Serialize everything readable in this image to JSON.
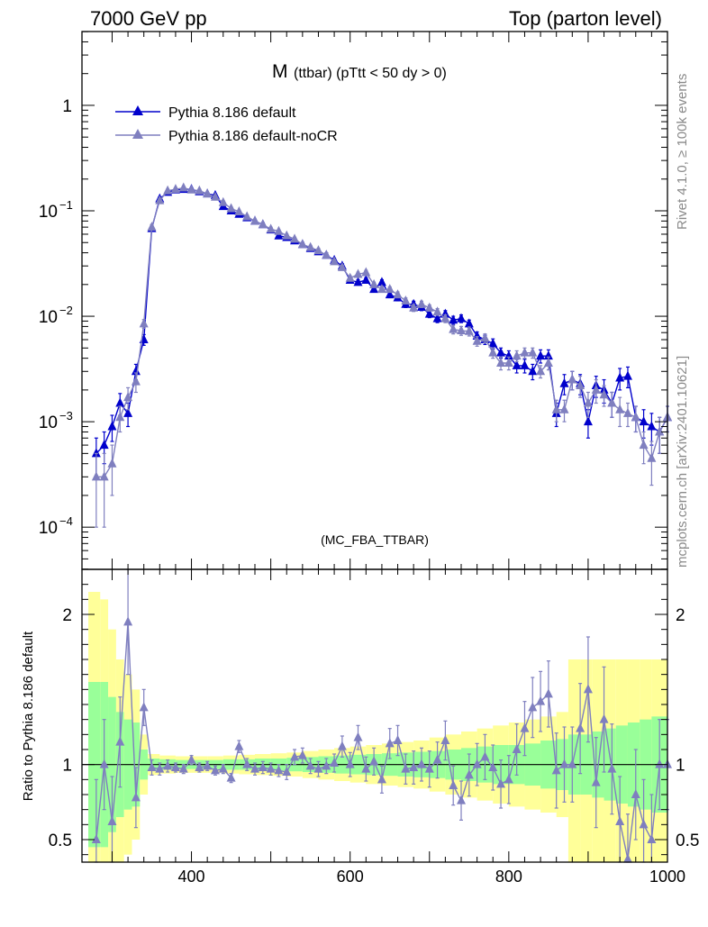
{
  "header": {
    "left": "7000 GeV pp",
    "right": "Top (parton level)"
  },
  "side": {
    "rivet": "Rivet 4.1.0, ≥ 100k events",
    "mcplots": "mcplots.cern.ch [arXiv:2401.10621]"
  },
  "chart_data": {
    "type": "line",
    "title": "M",
    "subtitle": "(ttbar) (pTtt < 50 dy > 0)",
    "analysis_tag": "(MC_FBA_TTBAR)",
    "xlim": [
      262,
      1000
    ],
    "ylim_log10": [
      -4.4,
      0.7
    ],
    "xticks": [
      400,
      600,
      800,
      1000
    ],
    "yticks_main": [
      {
        "exp": 0,
        "label": "1"
      },
      {
        "exp": -1,
        "label": "10"
      },
      {
        "exp": -2,
        "label": "10"
      },
      {
        "exp": -3,
        "label": "10"
      },
      {
        "exp": -4,
        "label": "10"
      }
    ],
    "ytick_exponents": [
      "−1",
      "−2",
      "−3",
      "−4"
    ],
    "ratio_ylabel": "Ratio to Pythia 8.186 default",
    "ratio_ylim": [
      0.35,
      2.3
    ],
    "ratio_yticks": [
      {
        "v": 0.5,
        "label": "0.5"
      },
      {
        "v": 1,
        "label": "1"
      },
      {
        "v": 2,
        "label": "2"
      }
    ],
    "x": [
      280,
      290,
      300,
      310,
      320,
      330,
      340,
      350,
      360,
      370,
      380,
      390,
      400,
      410,
      420,
      430,
      440,
      450,
      460,
      470,
      480,
      490,
      500,
      510,
      520,
      530,
      540,
      550,
      560,
      570,
      580,
      590,
      600,
      610,
      620,
      630,
      640,
      650,
      660,
      670,
      680,
      690,
      700,
      710,
      720,
      730,
      740,
      750,
      760,
      770,
      780,
      790,
      800,
      810,
      820,
      830,
      840,
      850,
      860,
      870,
      880,
      890,
      900,
      910,
      920,
      930,
      940,
      950,
      960,
      970,
      980,
      990,
      1000
    ],
    "series": [
      {
        "name": "Pythia 8.186 default",
        "color": "#0000cc",
        "values": [
          0.0005,
          0.0006,
          0.0009,
          0.0015,
          0.0012,
          0.003,
          0.006,
          0.068,
          0.13,
          0.15,
          0.158,
          0.16,
          0.16,
          0.152,
          0.145,
          0.14,
          0.11,
          0.1,
          0.093,
          0.086,
          0.08,
          0.074,
          0.066,
          0.058,
          0.056,
          0.052,
          0.048,
          0.044,
          0.041,
          0.038,
          0.034,
          0.03,
          0.022,
          0.021,
          0.022,
          0.018,
          0.021,
          0.016,
          0.015,
          0.013,
          0.013,
          0.0122,
          0.0105,
          0.0095,
          0.0105,
          0.0092,
          0.0095,
          0.0085,
          0.0065,
          0.006,
          0.0055,
          0.0045,
          0.0042,
          0.0034,
          0.0034,
          0.003,
          0.0042,
          0.0042,
          0.0012,
          0.0023,
          0.0025,
          0.0023,
          0.001,
          0.0022,
          0.002,
          0.0015,
          0.0026,
          0.0027,
          0.0011,
          0.001,
          0.0009,
          0.0008,
          0.0011
        ],
        "errors": [
          0.0002,
          0.0002,
          0.00025,
          0.00035,
          0.0003,
          0.0005,
          0.0007,
          0.004,
          0.005,
          0.005,
          0.005,
          0.005,
          0.005,
          0.005,
          0.004,
          0.004,
          0.004,
          0.003,
          0.003,
          0.003,
          0.003,
          0.003,
          0.003,
          0.002,
          0.002,
          0.002,
          0.002,
          0.002,
          0.002,
          0.002,
          0.0015,
          0.0015,
          0.0012,
          0.0012,
          0.0012,
          0.001,
          0.0012,
          0.001,
          0.001,
          0.0009,
          0.0009,
          0.0009,
          0.0008,
          0.0008,
          0.0008,
          0.0008,
          0.0008,
          0.0007,
          0.0006,
          0.0006,
          0.0006,
          0.0005,
          0.0005,
          0.0005,
          0.0005,
          0.0005,
          0.0006,
          0.0006,
          0.0003,
          0.0005,
          0.0005,
          0.0005,
          0.0003,
          0.0005,
          0.0005,
          0.0004,
          0.0006,
          0.0006,
          0.0003,
          0.0003,
          0.0003,
          0.0003,
          0.0003
        ]
      },
      {
        "name": "Pythia 8.186 default-noCR",
        "color": "#7f7fbf",
        "values": [
          0.0003,
          0.0003,
          0.0004,
          0.0011,
          0.0017,
          0.0024,
          0.0085,
          0.07,
          0.125,
          0.155,
          0.16,
          0.165,
          0.158,
          0.155,
          0.145,
          0.135,
          0.12,
          0.105,
          0.098,
          0.088,
          0.08,
          0.074,
          0.067,
          0.064,
          0.058,
          0.054,
          0.048,
          0.045,
          0.042,
          0.038,
          0.033,
          0.029,
          0.023,
          0.025,
          0.026,
          0.02,
          0.018,
          0.018,
          0.016,
          0.014,
          0.012,
          0.013,
          0.012,
          0.011,
          0.0095,
          0.0075,
          0.0073,
          0.0072,
          0.0058,
          0.0062,
          0.0045,
          0.0036,
          0.0036,
          0.0042,
          0.0045,
          0.0045,
          0.003,
          0.0036,
          0.0013,
          0.0013,
          0.0025,
          0.0022,
          0.0015,
          0.002,
          0.0018,
          0.0015,
          0.0013,
          0.0012,
          0.0011,
          0.0006,
          0.00045,
          0.0008,
          0.0011
        ],
        "errors": [
          0.0002,
          0.0002,
          0.0002,
          0.0003,
          0.0004,
          0.0005,
          0.0008,
          0.004,
          0.005,
          0.005,
          0.005,
          0.005,
          0.005,
          0.005,
          0.004,
          0.004,
          0.004,
          0.003,
          0.003,
          0.003,
          0.003,
          0.003,
          0.003,
          0.002,
          0.002,
          0.002,
          0.002,
          0.002,
          0.002,
          0.002,
          0.0015,
          0.0015,
          0.0012,
          0.0012,
          0.0012,
          0.001,
          0.001,
          0.001,
          0.001,
          0.0009,
          0.0009,
          0.0009,
          0.0008,
          0.0008,
          0.0008,
          0.0007,
          0.0007,
          0.0007,
          0.0006,
          0.0006,
          0.0005,
          0.0005,
          0.0005,
          0.0005,
          0.0005,
          0.0005,
          0.0004,
          0.0005,
          0.0003,
          0.0003,
          0.0005,
          0.0005,
          0.0004,
          0.0005,
          0.0004,
          0.0004,
          0.0004,
          0.0003,
          0.0003,
          0.0002,
          0.0002,
          0.0003,
          0.0003
        ]
      }
    ],
    "ratio": {
      "values": [
        0.5,
        1.0,
        0.62,
        1.15,
        1.95,
        0.78,
        1.38,
        0.98,
        0.97,
        0.99,
        0.98,
        0.97,
        1.03,
        0.98,
        0.99,
        0.96,
        0.97,
        0.91,
        1.12,
        1.0,
        0.97,
        0.98,
        0.97,
        0.96,
        0.95,
        1.05,
        1.06,
        0.99,
        0.97,
        0.99,
        1.01,
        1.12,
        1.0,
        1.18,
        0.97,
        1.02,
        0.9,
        1.14,
        1.16,
        0.97,
        0.98,
        1.0,
        0.97,
        1.03,
        1.16,
        0.86,
        0.76,
        0.93,
        1.0,
        1.05,
        0.98,
        0.87,
        0.9,
        1.1,
        1.24,
        1.38,
        1.42,
        1.47,
        0.96,
        1.0,
        1.0,
        1.24,
        1.5,
        0.88,
        1.3,
        0.97,
        0.62,
        0.37,
        0.8,
        0.6,
        0.5,
        1.0,
        1.0
      ],
      "errors": [
        0.4,
        0.3,
        0.3,
        0.3,
        0.35,
        0.2,
        0.12,
        0.05,
        0.04,
        0.04,
        0.03,
        0.03,
        0.03,
        0.03,
        0.03,
        0.03,
        0.03,
        0.03,
        0.04,
        0.04,
        0.04,
        0.04,
        0.04,
        0.04,
        0.05,
        0.05,
        0.05,
        0.05,
        0.05,
        0.05,
        0.06,
        0.07,
        0.08,
        0.08,
        0.08,
        0.09,
        0.09,
        0.1,
        0.1,
        0.1,
        0.11,
        0.11,
        0.12,
        0.12,
        0.13,
        0.13,
        0.13,
        0.14,
        0.14,
        0.15,
        0.15,
        0.16,
        0.16,
        0.17,
        0.18,
        0.2,
        0.2,
        0.22,
        0.25,
        0.25,
        0.25,
        0.3,
        0.35,
        0.3,
        0.35,
        0.3,
        0.3,
        0.3,
        0.3,
        0.3,
        0.3,
        0.3,
        0.3
      ],
      "mc_band_x_edges": [
        270,
        285,
        295,
        305,
        315,
        325,
        335,
        345,
        360,
        380,
        400,
        420,
        440,
        460,
        480,
        500,
        520,
        540,
        560,
        580,
        600,
        620,
        640,
        660,
        680,
        700,
        720,
        740,
        760,
        780,
        800,
        820,
        840,
        860,
        875,
        890,
        905,
        920,
        935,
        950,
        965,
        980,
        1000
      ],
      "band_green": [
        0.55,
        0.55,
        0.45,
        0.35,
        0.3,
        0.28,
        0.1,
        0.04,
        0.035,
        0.03,
        0.03,
        0.03,
        0.035,
        0.035,
        0.04,
        0.04,
        0.045,
        0.05,
        0.055,
        0.06,
        0.065,
        0.07,
        0.075,
        0.08,
        0.085,
        0.09,
        0.1,
        0.11,
        0.12,
        0.13,
        0.13,
        0.14,
        0.16,
        0.17,
        0.2,
        0.2,
        0.22,
        0.24,
        0.26,
        0.28,
        0.3,
        0.32
      ],
      "band_yellow": [
        1.15,
        1.1,
        0.9,
        0.7,
        0.6,
        0.5,
        0.2,
        0.07,
        0.06,
        0.055,
        0.055,
        0.055,
        0.06,
        0.065,
        0.07,
        0.075,
        0.08,
        0.09,
        0.1,
        0.11,
        0.12,
        0.13,
        0.14,
        0.15,
        0.16,
        0.18,
        0.2,
        0.22,
        0.24,
        0.26,
        0.28,
        0.3,
        0.32,
        0.35,
        0.7,
        0.7,
        0.7,
        0.7,
        0.7,
        0.7,
        0.7,
        0.7
      ]
    }
  }
}
